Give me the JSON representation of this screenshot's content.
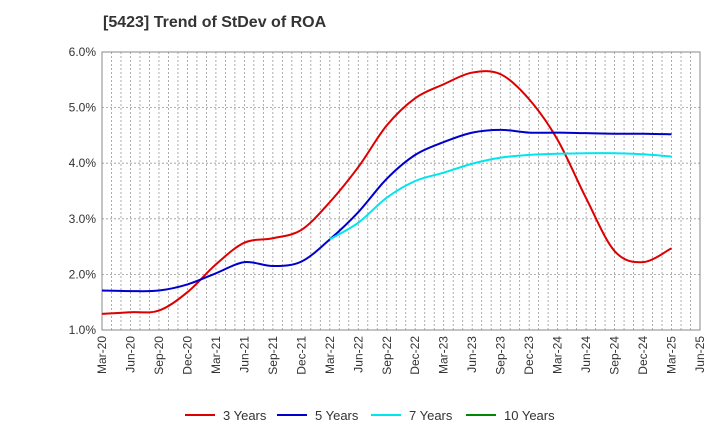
{
  "chart_data": {
    "type": "line",
    "title": "[5423]  Trend of StDev of ROA",
    "xlabel": "",
    "ylabel": "",
    "x": [
      "Mar-20",
      "Jun-20",
      "Sep-20",
      "Dec-20",
      "Mar-21",
      "Jun-21",
      "Sep-21",
      "Dec-21",
      "Mar-22",
      "Jun-22",
      "Sep-22",
      "Dec-22",
      "Mar-23",
      "Jun-23",
      "Sep-23",
      "Dec-23",
      "Mar-24",
      "Jun-24",
      "Sep-24",
      "Dec-24",
      "Mar-25",
      "Jun-25"
    ],
    "ylim": [
      1.0,
      6.0
    ],
    "yticks": [
      1.0,
      2.0,
      3.0,
      4.0,
      5.0,
      6.0
    ],
    "ytick_labels": [
      "1.0%",
      "2.0%",
      "3.0%",
      "4.0%",
      "5.0%",
      "6.0%"
    ],
    "grid": true,
    "legend_position": "bottom",
    "series": [
      {
        "name": "3 Years",
        "color": "#dd0000",
        "values": [
          1.29,
          1.32,
          1.35,
          1.68,
          2.18,
          2.57,
          2.65,
          2.8,
          3.3,
          3.93,
          4.68,
          5.17,
          5.42,
          5.63,
          5.6,
          5.15,
          4.42,
          3.37,
          2.42,
          2.22,
          2.47,
          null
        ]
      },
      {
        "name": "5 Years",
        "color": "#0000cc",
        "values": [
          1.71,
          1.7,
          1.71,
          1.82,
          2.02,
          2.22,
          2.15,
          2.23,
          2.63,
          3.12,
          3.72,
          4.15,
          4.38,
          4.55,
          4.6,
          4.55,
          4.55,
          4.54,
          4.53,
          4.53,
          4.52,
          null
        ]
      },
      {
        "name": "7 Years",
        "color": "#00e5ee",
        "values": [
          null,
          null,
          null,
          null,
          null,
          null,
          null,
          null,
          2.63,
          2.93,
          3.38,
          3.68,
          3.83,
          3.99,
          4.1,
          4.15,
          4.17,
          4.18,
          4.18,
          4.16,
          4.12,
          null
        ]
      },
      {
        "name": "10 Years",
        "color": "#008800",
        "values": [
          null,
          null,
          null,
          null,
          null,
          null,
          null,
          null,
          null,
          null,
          null,
          null,
          null,
          null,
          null,
          null,
          null,
          null,
          null,
          null,
          null,
          null
        ]
      }
    ]
  }
}
